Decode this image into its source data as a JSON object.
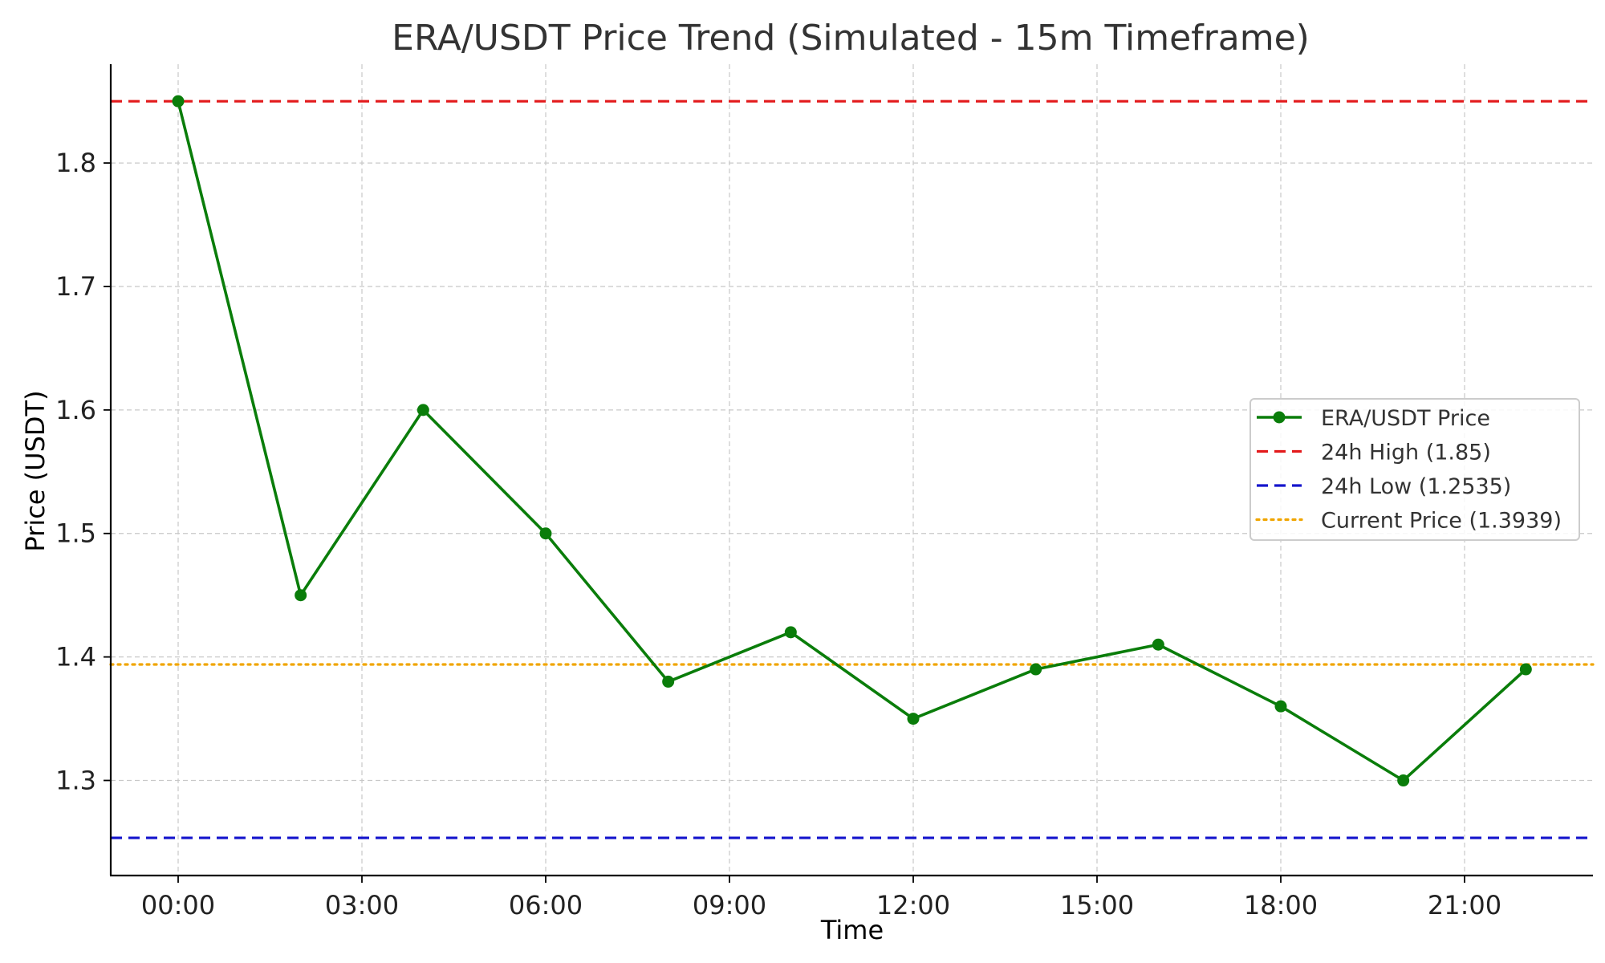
{
  "chart_data": {
    "type": "line",
    "title": "ERA/USDT Price Trend (Simulated - 15m Timeframe)",
    "xlabel": "Time",
    "ylabel": "Price (USDT)",
    "x_ticks": [
      "00:00",
      "03:00",
      "06:00",
      "09:00",
      "12:00",
      "15:00",
      "18:00",
      "21:00"
    ],
    "y_ticks": [
      1.3,
      1.4,
      1.5,
      1.6,
      1.7,
      1.8
    ],
    "xlim": [
      "23:05",
      "23:00 (next day)"
    ],
    "ylim": [
      1.223,
      1.88
    ],
    "grid": true,
    "legend_position": "center-right",
    "series": [
      {
        "name": "ERA/USDT Price",
        "color": "#0a7d0a",
        "marker": "circle",
        "line_style": "solid",
        "x": [
          "00:00",
          "02:00",
          "04:00",
          "06:00",
          "08:00",
          "10:00",
          "12:00",
          "14:00",
          "16:00",
          "18:00",
          "20:00",
          "22:00"
        ],
        "values": [
          1.85,
          1.45,
          1.6,
          1.5,
          1.38,
          1.42,
          1.35,
          1.39,
          1.41,
          1.36,
          1.3,
          1.39
        ]
      }
    ],
    "reference_lines": [
      {
        "name": "24h High (1.85)",
        "value": 1.85,
        "color": "#e31a1c",
        "style": "dashed"
      },
      {
        "name": "24h Low (1.2535)",
        "value": 1.2535,
        "color": "#1515cc",
        "style": "dashed"
      },
      {
        "name": "Current Price (1.3939)",
        "value": 1.3939,
        "color": "#f0a500",
        "style": "dotted"
      }
    ]
  }
}
